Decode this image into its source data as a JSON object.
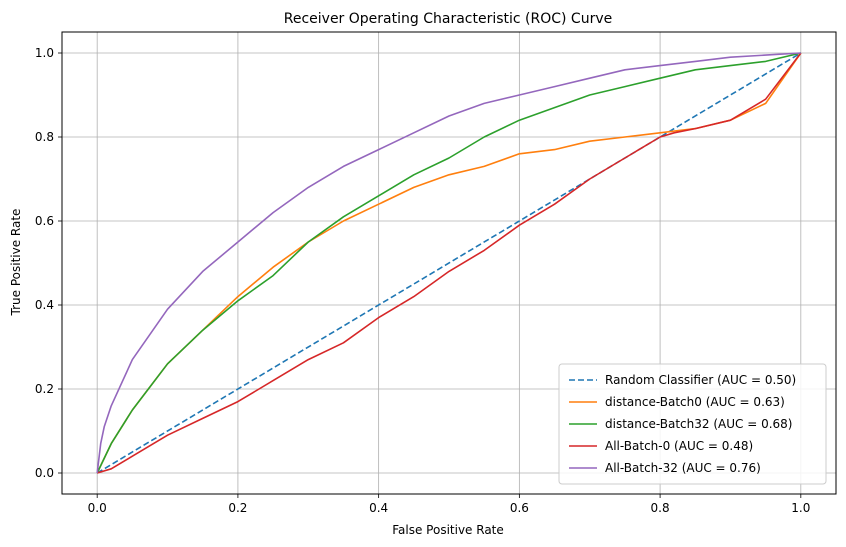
{
  "chart_data": {
    "type": "line",
    "title": "Receiver Operating Characteristic (ROC) Curve",
    "xlabel": "False Positive Rate",
    "ylabel": "True Positive Rate",
    "xlim": [
      -0.05,
      1.05
    ],
    "ylim": [
      -0.05,
      1.05
    ],
    "xticks": [
      0.0,
      0.2,
      0.4,
      0.6,
      0.8,
      1.0
    ],
    "yticks": [
      0.0,
      0.2,
      0.4,
      0.6,
      0.8,
      1.0
    ],
    "xtick_labels": [
      "0.0",
      "0.2",
      "0.4",
      "0.6",
      "0.8",
      "1.0"
    ],
    "ytick_labels": [
      "0.0",
      "0.2",
      "0.4",
      "0.6",
      "0.8",
      "1.0"
    ],
    "grid": true,
    "legend_position": "bottom-right",
    "series": [
      {
        "name": "Random Classifier (AUC = 0.50)",
        "color": "#1f77b4",
        "dash": "dashed",
        "x": [
          0,
          1
        ],
        "y": [
          0,
          1
        ]
      },
      {
        "name": "distance-Batch0 (AUC = 0.63)",
        "color": "#ff7f0e",
        "dash": "solid",
        "x": [
          0,
          0.02,
          0.05,
          0.1,
          0.15,
          0.2,
          0.25,
          0.3,
          0.35,
          0.4,
          0.45,
          0.5,
          0.55,
          0.6,
          0.65,
          0.7,
          0.75,
          0.8,
          0.85,
          0.9,
          0.95,
          1.0
        ],
        "y": [
          0,
          0.07,
          0.15,
          0.26,
          0.34,
          0.42,
          0.49,
          0.55,
          0.6,
          0.64,
          0.68,
          0.71,
          0.73,
          0.76,
          0.77,
          0.79,
          0.8,
          0.81,
          0.82,
          0.84,
          0.88,
          1.0
        ]
      },
      {
        "name": "distance-Batch32 (AUC = 0.68)",
        "color": "#2ca02c",
        "dash": "solid",
        "x": [
          0,
          0.02,
          0.05,
          0.1,
          0.15,
          0.2,
          0.25,
          0.3,
          0.35,
          0.4,
          0.45,
          0.5,
          0.55,
          0.6,
          0.65,
          0.7,
          0.75,
          0.8,
          0.85,
          0.9,
          0.95,
          1.0
        ],
        "y": [
          0,
          0.07,
          0.15,
          0.26,
          0.34,
          0.41,
          0.47,
          0.55,
          0.61,
          0.66,
          0.71,
          0.75,
          0.8,
          0.84,
          0.87,
          0.9,
          0.92,
          0.94,
          0.96,
          0.97,
          0.98,
          1.0
        ]
      },
      {
        "name": "All-Batch-0 (AUC = 0.48)",
        "color": "#d62728",
        "dash": "solid",
        "x": [
          0,
          0.02,
          0.05,
          0.1,
          0.15,
          0.2,
          0.25,
          0.3,
          0.35,
          0.4,
          0.45,
          0.5,
          0.55,
          0.6,
          0.65,
          0.7,
          0.75,
          0.8,
          0.82,
          0.85,
          0.9,
          0.95,
          1.0
        ],
        "y": [
          0,
          0.01,
          0.04,
          0.09,
          0.13,
          0.17,
          0.22,
          0.27,
          0.31,
          0.37,
          0.42,
          0.48,
          0.53,
          0.59,
          0.64,
          0.7,
          0.75,
          0.8,
          0.81,
          0.82,
          0.84,
          0.89,
          1.0
        ]
      },
      {
        "name": "All-Batch-32 (AUC = 0.76)",
        "color": "#9467bd",
        "dash": "solid",
        "x": [
          0,
          0.005,
          0.01,
          0.02,
          0.05,
          0.1,
          0.15,
          0.2,
          0.25,
          0.3,
          0.35,
          0.4,
          0.45,
          0.5,
          0.55,
          0.6,
          0.65,
          0.7,
          0.75,
          0.8,
          0.85,
          0.9,
          0.95,
          1.0
        ],
        "y": [
          0,
          0.07,
          0.11,
          0.16,
          0.27,
          0.39,
          0.48,
          0.55,
          0.62,
          0.68,
          0.73,
          0.77,
          0.81,
          0.85,
          0.88,
          0.9,
          0.92,
          0.94,
          0.96,
          0.97,
          0.98,
          0.99,
          0.995,
          1.0
        ]
      }
    ]
  }
}
